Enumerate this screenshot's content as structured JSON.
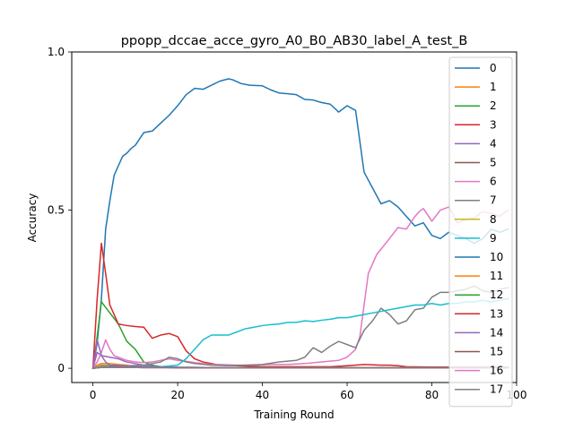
{
  "chart_data": {
    "type": "line",
    "title": "ppopp_dccae_acce_gyro_A0_B0_AB30_label_A_test_B",
    "xlabel": "Training Round",
    "ylabel": "Accuracy",
    "xlim": [
      -5,
      100
    ],
    "ylim": [
      -0.045,
      1.0
    ],
    "xticks": [
      0,
      20,
      40,
      60,
      80,
      100
    ],
    "xtick_labels": [
      "0",
      "20",
      "40",
      "60",
      "80",
      "100"
    ],
    "yticks": [
      0,
      0.5,
      1.0
    ],
    "ytick_labels": [
      "0",
      "0.5",
      "1.0"
    ],
    "grid": false,
    "legend": "right",
    "series": [
      {
        "name": "0",
        "color": "#1f77b4",
        "x": [
          0,
          1,
          2,
          3,
          4,
          5,
          6,
          7,
          8,
          9,
          10,
          12,
          14,
          16,
          18,
          20,
          22,
          24,
          26,
          28,
          30,
          32,
          33,
          35,
          37,
          40,
          42,
          44,
          46,
          48,
          50,
          52,
          54,
          56,
          58,
          60,
          62,
          64,
          66,
          68,
          70,
          72,
          74,
          76,
          78,
          80,
          82,
          84,
          86,
          88,
          90,
          92,
          94,
          96,
          98
        ],
        "y": [
          0.0,
          0.08,
          0.22,
          0.44,
          0.53,
          0.61,
          0.64,
          0.67,
          0.68,
          0.695,
          0.705,
          0.745,
          0.75,
          0.775,
          0.8,
          0.83,
          0.865,
          0.885,
          0.882,
          0.895,
          0.908,
          0.915,
          0.912,
          0.9,
          0.895,
          0.893,
          0.88,
          0.87,
          0.868,
          0.865,
          0.85,
          0.848,
          0.84,
          0.835,
          0.81,
          0.83,
          0.815,
          0.62,
          0.57,
          0.52,
          0.53,
          0.51,
          0.48,
          0.45,
          0.46,
          0.42,
          0.41,
          0.43,
          0.42,
          0.41,
          0.395,
          0.41,
          0.44,
          0.43,
          0.44
        ]
      },
      {
        "name": "1",
        "color": "#ff7f0e",
        "x": [
          0,
          1,
          2,
          4,
          6,
          8,
          10,
          14,
          20,
          30,
          40,
          50,
          60,
          70,
          80,
          90,
          98
        ],
        "y": [
          0.0,
          0.01,
          0.015,
          0.015,
          0.012,
          0.01,
          0.005,
          0.003,
          0.002,
          0.002,
          0.002,
          0.002,
          0.002,
          0.002,
          0.002,
          0.002,
          0.002
        ]
      },
      {
        "name": "2",
        "color": "#2ca02c",
        "x": [
          0,
          1,
          2,
          4,
          6,
          8,
          10,
          12,
          14,
          16,
          20,
          30,
          40,
          50,
          60,
          70,
          80,
          90,
          98
        ],
        "y": [
          0.0,
          0.1,
          0.21,
          0.175,
          0.14,
          0.085,
          0.06,
          0.02,
          0.01,
          0.005,
          0.003,
          0.002,
          0.002,
          0.002,
          0.002,
          0.002,
          0.002,
          0.002,
          0.002
        ]
      },
      {
        "name": "3",
        "color": "#d62728",
        "x": [
          0,
          1,
          2,
          3,
          4,
          6,
          8,
          10,
          12,
          14,
          16,
          18,
          20,
          22,
          24,
          26,
          28,
          30,
          34,
          40,
          50,
          56,
          60,
          64,
          68,
          70,
          72,
          74,
          80,
          90,
          98
        ],
        "y": [
          0.0,
          0.22,
          0.395,
          0.3,
          0.2,
          0.14,
          0.135,
          0.132,
          0.13,
          0.095,
          0.105,
          0.11,
          0.1,
          0.055,
          0.03,
          0.02,
          0.015,
          0.01,
          0.008,
          0.005,
          0.005,
          0.005,
          0.008,
          0.012,
          0.01,
          0.01,
          0.008,
          0.005,
          0.004,
          0.004,
          0.004
        ]
      },
      {
        "name": "4",
        "color": "#9467bd",
        "x": [
          0,
          1,
          2,
          4,
          6,
          8,
          10,
          12,
          16,
          20,
          30,
          40,
          50,
          60,
          70,
          80,
          90,
          98
        ],
        "y": [
          0.0,
          0.05,
          0.04,
          0.035,
          0.03,
          0.02,
          0.015,
          0.01,
          0.005,
          0.003,
          0.002,
          0.002,
          0.002,
          0.002,
          0.002,
          0.002,
          0.002,
          0.002
        ]
      },
      {
        "name": "5",
        "color": "#8c564b",
        "x": [
          0,
          1,
          2,
          4,
          8,
          12,
          20,
          30,
          40,
          50,
          60,
          70,
          80,
          90,
          98
        ],
        "y": [
          0.0,
          0.005,
          0.005,
          0.004,
          0.004,
          0.003,
          0.002,
          0.002,
          0.002,
          0.002,
          0.002,
          0.002,
          0.002,
          0.002,
          0.002
        ]
      },
      {
        "name": "6",
        "color": "#e377c2",
        "x": [
          0,
          1,
          2,
          3,
          4,
          5,
          6,
          7,
          8,
          10,
          12,
          14,
          16,
          18,
          20,
          22,
          24,
          26,
          28,
          30,
          34,
          38,
          42,
          46,
          50,
          54,
          58,
          60,
          62,
          63,
          65,
          67,
          70,
          72,
          74,
          76,
          77,
          78,
          80,
          82,
          84,
          86,
          88,
          90,
          92,
          94,
          96,
          98
        ],
        "y": [
          0.0,
          0.02,
          0.05,
          0.09,
          0.06,
          0.04,
          0.035,
          0.03,
          0.025,
          0.02,
          0.018,
          0.02,
          0.025,
          0.03,
          0.025,
          0.022,
          0.018,
          0.015,
          0.012,
          0.012,
          0.01,
          0.01,
          0.012,
          0.012,
          0.015,
          0.02,
          0.025,
          0.035,
          0.06,
          0.1,
          0.3,
          0.36,
          0.41,
          0.445,
          0.44,
          0.48,
          0.495,
          0.505,
          0.465,
          0.5,
          0.51,
          0.46,
          0.47,
          0.475,
          0.495,
          0.49,
          0.48,
          0.5
        ]
      },
      {
        "name": "7",
        "color": "#7f7f7f",
        "x": [
          0,
          2,
          4,
          8,
          12,
          16,
          18,
          20,
          22,
          24,
          28,
          32,
          36,
          40,
          44,
          48,
          50,
          52,
          54,
          56,
          58,
          60,
          62,
          64,
          66,
          68,
          70,
          72,
          74,
          76,
          78,
          80,
          82,
          84,
          86,
          88,
          90,
          92,
          94,
          96,
          98
        ],
        "y": [
          0.0,
          0.01,
          0.01,
          0.008,
          0.01,
          0.02,
          0.035,
          0.03,
          0.02,
          0.015,
          0.01,
          0.008,
          0.01,
          0.012,
          0.02,
          0.025,
          0.035,
          0.065,
          0.05,
          0.07,
          0.085,
          0.075,
          0.065,
          0.12,
          0.15,
          0.19,
          0.17,
          0.14,
          0.15,
          0.185,
          0.19,
          0.225,
          0.24,
          0.24,
          0.245,
          0.25,
          0.26,
          0.245,
          0.24,
          0.25,
          0.255
        ]
      },
      {
        "name": "8",
        "color": "#bcbd22",
        "x": [
          0,
          2,
          4,
          8,
          12,
          20,
          30,
          40,
          50,
          60,
          70,
          80,
          90,
          98
        ],
        "y": [
          0.0,
          0.008,
          0.008,
          0.006,
          0.004,
          0.002,
          0.002,
          0.002,
          0.002,
          0.002,
          0.002,
          0.002,
          0.002,
          0.002
        ]
      },
      {
        "name": "9",
        "color": "#17becf",
        "x": [
          0,
          4,
          8,
          12,
          16,
          20,
          22,
          24,
          26,
          28,
          30,
          32,
          34,
          36,
          38,
          40,
          42,
          44,
          46,
          48,
          50,
          52,
          54,
          56,
          58,
          60,
          62,
          64,
          66,
          68,
          70,
          72,
          74,
          76,
          78,
          80,
          82,
          84,
          86,
          88,
          90,
          92,
          94,
          96,
          98
        ],
        "y": [
          0.0,
          0.005,
          0.005,
          0.005,
          0.005,
          0.01,
          0.03,
          0.06,
          0.09,
          0.105,
          0.105,
          0.105,
          0.115,
          0.125,
          0.13,
          0.135,
          0.138,
          0.14,
          0.145,
          0.145,
          0.15,
          0.148,
          0.152,
          0.155,
          0.16,
          0.16,
          0.165,
          0.17,
          0.175,
          0.18,
          0.185,
          0.19,
          0.195,
          0.2,
          0.2,
          0.205,
          0.2,
          0.205,
          0.205,
          0.21,
          0.21,
          0.215,
          0.21,
          0.215,
          0.22
        ]
      },
      {
        "name": "10",
        "color": "#1f77b4",
        "x": [
          0,
          2,
          4,
          8,
          12,
          20,
          30,
          40,
          50,
          60,
          70,
          80,
          90,
          98
        ],
        "y": [
          0.0,
          0.005,
          0.005,
          0.004,
          0.003,
          0.002,
          0.002,
          0.002,
          0.002,
          0.002,
          0.002,
          0.002,
          0.002,
          0.002
        ]
      },
      {
        "name": "11",
        "color": "#ff7f0e",
        "x": [
          0,
          2,
          4,
          8,
          12,
          20,
          30,
          40,
          50,
          60,
          70,
          80,
          90,
          98
        ],
        "y": [
          0.0,
          0.004,
          0.004,
          0.003,
          0.003,
          0.002,
          0.002,
          0.002,
          0.002,
          0.002,
          0.002,
          0.002,
          0.002,
          0.002
        ]
      },
      {
        "name": "12",
        "color": "#2ca02c",
        "x": [
          0,
          2,
          4,
          8,
          12,
          20,
          30,
          40,
          50,
          60,
          70,
          80,
          90,
          98
        ],
        "y": [
          0.0,
          0.003,
          0.003,
          0.003,
          0.003,
          0.002,
          0.002,
          0.002,
          0.002,
          0.002,
          0.002,
          0.002,
          0.002,
          0.002
        ]
      },
      {
        "name": "13",
        "color": "#d62728",
        "x": [
          0,
          2,
          4,
          8,
          12,
          20,
          30,
          40,
          50,
          60,
          70,
          80,
          90,
          98
        ],
        "y": [
          0.0,
          0.003,
          0.003,
          0.003,
          0.002,
          0.002,
          0.002,
          0.002,
          0.002,
          0.002,
          0.002,
          0.002,
          0.002,
          0.002
        ]
      },
      {
        "name": "14",
        "color": "#9467bd",
        "x": [
          0,
          1,
          2,
          3,
          4,
          6,
          8,
          10,
          14,
          20,
          30,
          40,
          50,
          60,
          70,
          80,
          90,
          98
        ],
        "y": [
          0.0,
          0.09,
          0.04,
          0.02,
          0.01,
          0.008,
          0.006,
          0.005,
          0.004,
          0.003,
          0.002,
          0.002,
          0.002,
          0.002,
          0.002,
          0.002,
          0.002,
          0.002
        ]
      },
      {
        "name": "15",
        "color": "#8c564b",
        "x": [
          0,
          2,
          4,
          8,
          12,
          20,
          30,
          40,
          50,
          60,
          70,
          80,
          90,
          98
        ],
        "y": [
          0.0,
          0.003,
          0.003,
          0.003,
          0.002,
          0.002,
          0.002,
          0.002,
          0.002,
          0.002,
          0.002,
          0.002,
          0.002,
          0.002
        ]
      },
      {
        "name": "16",
        "color": "#e377c2",
        "x": [
          0,
          2,
          4,
          8,
          12,
          20,
          30,
          40,
          50,
          60,
          70,
          80,
          90,
          98
        ],
        "y": [
          0.0,
          0.003,
          0.003,
          0.003,
          0.002,
          0.002,
          0.002,
          0.002,
          0.002,
          0.002,
          0.002,
          0.002,
          0.002,
          0.002
        ]
      },
      {
        "name": "17",
        "color": "#7f7f7f",
        "x": [
          0,
          2,
          4,
          8,
          12,
          20,
          30,
          40,
          50,
          60,
          70,
          80,
          90,
          98
        ],
        "y": [
          0.0,
          0.004,
          0.004,
          0.003,
          0.003,
          0.002,
          0.002,
          0.002,
          0.002,
          0.002,
          0.002,
          0.002,
          0.002,
          0.002
        ]
      }
    ]
  }
}
